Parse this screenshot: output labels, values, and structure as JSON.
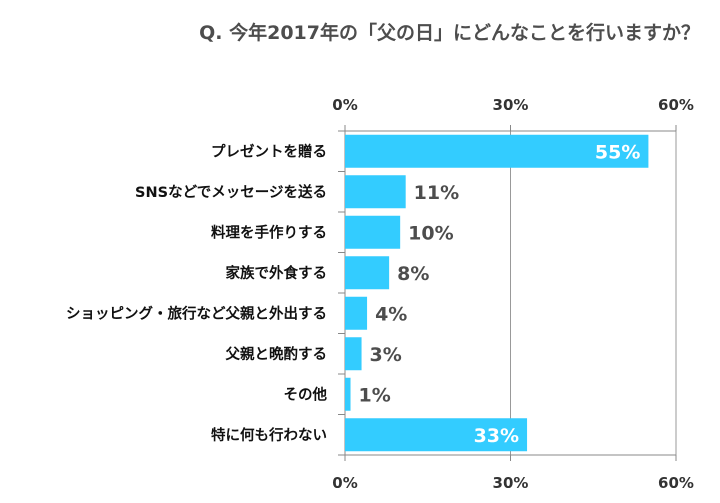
{
  "chart_data": {
    "type": "bar",
    "orientation": "horizontal",
    "title": "Q. 今年2017年の「父の日」にどんなことを行いますか？",
    "categories": [
      "プレゼントを贈る",
      "SNSなどでメッセージを送る",
      "料理を手作りする",
      "家族で外食する",
      "ショッピング・旅行など父親と外出する",
      "父親と晩酌する",
      "その他",
      "特に何も行わない"
    ],
    "values": [
      55,
      11,
      10,
      8,
      4,
      3,
      1,
      33
    ],
    "value_labels": [
      "55%",
      "11%",
      "10%",
      "8%",
      "4%",
      "3%",
      "1%",
      "33%"
    ],
    "xlim": [
      0,
      60
    ],
    "xticks": [
      0,
      30,
      60
    ],
    "xtick_labels": [
      "0%",
      "30%",
      "60%"
    ],
    "grid": true,
    "colors": {
      "bar": "#33CCFF",
      "label_inside": "#FFFFFF",
      "label_outside": "#4D4D4D"
    }
  }
}
